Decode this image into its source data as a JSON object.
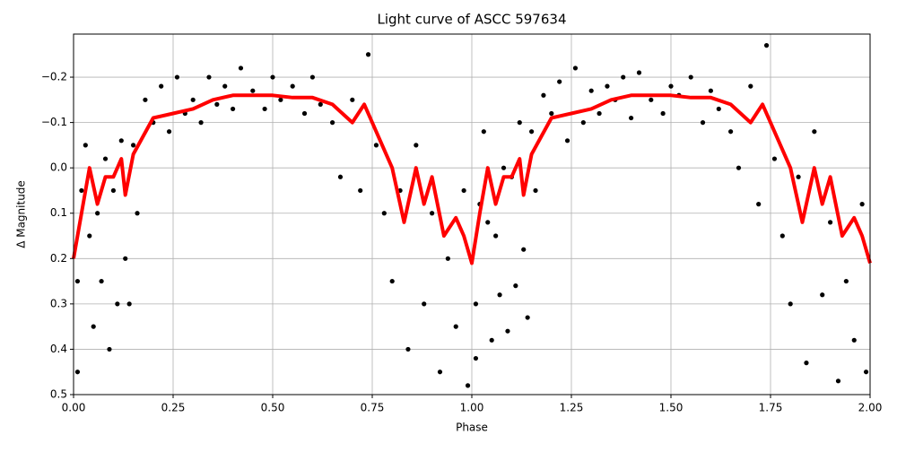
{
  "chart_data": {
    "type": "scatter",
    "title": "Light curve of ASCC 597634",
    "x_label": "Phase",
    "y_label": "Δ Magnitude",
    "xlim": [
      0,
      2
    ],
    "ylim": [
      0.5,
      -0.295
    ],
    "xticks": [
      {
        "value": 0,
        "label": "0.00"
      },
      {
        "value": 0.25,
        "label": "0.25"
      },
      {
        "value": 0.5,
        "label": "0.50"
      },
      {
        "value": 0.75,
        "label": "0.75"
      },
      {
        "value": 1,
        "label": "1.00"
      },
      {
        "value": 1.25,
        "label": "1.25"
      },
      {
        "value": 1.5,
        "label": "1.50"
      },
      {
        "value": 1.75,
        "label": "1.75"
      },
      {
        "value": 2,
        "label": "2.00"
      }
    ],
    "yticks": [
      {
        "value": -0.2,
        "label": "−0.2"
      },
      {
        "value": -0.1,
        "label": "−0.1"
      },
      {
        "value": 0,
        "label": "0.0"
      },
      0.1,
      0.2,
      0.3,
      0.4,
      0.5
    ],
    "grid": true,
    "points": {
      "color": "#000000",
      "x": [
        0.01,
        0.01,
        0.02,
        0.03,
        0.04,
        0.05,
        0.06,
        0.07,
        0.08,
        0.09,
        0.1,
        0.11,
        0.12,
        0.13,
        0.14,
        0.15,
        0.16,
        0.18,
        0.2,
        0.22,
        0.24,
        0.26,
        0.28,
        0.3,
        0.32,
        0.34,
        0.36,
        0.38,
        0.4,
        0.42,
        0.45,
        0.48,
        0.5,
        0.52,
        0.55,
        0.58,
        0.6,
        0.62,
        0.65,
        0.67,
        0.7,
        0.72,
        0.74,
        0.76,
        0.78,
        0.8,
        0.82,
        0.84,
        0.86,
        0.88,
        0.9,
        0.92,
        0.94,
        0.96,
        0.98,
        0.99,
        1.01,
        1.01,
        1.02,
        1.03,
        1.04,
        1.05,
        1.06,
        1.07,
        1.08,
        1.09,
        1.1,
        1.11,
        1.12,
        1.13,
        1.14,
        1.15,
        1.16,
        1.18,
        1.2,
        1.22,
        1.24,
        1.26,
        1.28,
        1.3,
        1.32,
        1.34,
        1.36,
        1.38,
        1.4,
        1.42,
        1.45,
        1.48,
        1.5,
        1.52,
        1.55,
        1.58,
        1.6,
        1.62,
        1.65,
        1.67,
        1.7,
        1.72,
        1.74,
        1.76,
        1.78,
        1.8,
        1.82,
        1.84,
        1.86,
        1.88,
        1.9,
        1.92,
        1.94,
        1.96,
        1.98,
        1.99
      ],
      "y": [
        0.25,
        0.45,
        0.05,
        -0.05,
        0.15,
        0.35,
        0.1,
        0.25,
        -0.02,
        0.4,
        0.05,
        0.3,
        -0.06,
        0.2,
        0.3,
        -0.05,
        0.1,
        -0.15,
        -0.1,
        -0.18,
        -0.08,
        -0.2,
        -0.12,
        -0.15,
        -0.1,
        -0.2,
        -0.14,
        -0.18,
        -0.13,
        -0.22,
        -0.17,
        -0.13,
        -0.2,
        -0.15,
        -0.18,
        -0.12,
        -0.2,
        -0.14,
        -0.1,
        0.02,
        -0.15,
        0.05,
        -0.25,
        -0.05,
        0.1,
        0.25,
        0.05,
        0.4,
        -0.05,
        0.3,
        0.1,
        0.45,
        0.2,
        0.35,
        0.05,
        0.48,
        0.3,
        0.42,
        0.08,
        -0.08,
        0.12,
        0.38,
        0.15,
        0.28,
        0.0,
        0.36,
        0.02,
        0.26,
        -0.1,
        0.18,
        0.33,
        -0.08,
        0.05,
        -0.16,
        -0.12,
        -0.19,
        -0.06,
        -0.22,
        -0.1,
        -0.17,
        -0.12,
        -0.18,
        -0.15,
        -0.2,
        -0.11,
        -0.21,
        -0.15,
        -0.12,
        -0.18,
        -0.16,
        -0.2,
        -0.1,
        -0.17,
        -0.13,
        -0.08,
        0.0,
        -0.18,
        0.08,
        -0.27,
        -0.02,
        0.15,
        0.3,
        0.02,
        0.43,
        -0.08,
        0.28,
        0.12,
        0.47,
        0.25,
        0.38,
        0.08,
        0.45
      ]
    },
    "curve": {
      "color": "#ff0000",
      "x": [
        0,
        0.02,
        0.04,
        0.06,
        0.08,
        0.1,
        0.12,
        0.13,
        0.15,
        0.2,
        0.25,
        0.3,
        0.35,
        0.4,
        0.45,
        0.5,
        0.55,
        0.6,
        0.65,
        0.7,
        0.73,
        0.76,
        0.8,
        0.83,
        0.86,
        0.88,
        0.9,
        0.93,
        0.96,
        0.98,
        1.0,
        1.02,
        1.04,
        1.06,
        1.08,
        1.1,
        1.12,
        1.13,
        1.15,
        1.2,
        1.25,
        1.3,
        1.35,
        1.4,
        1.45,
        1.5,
        1.55,
        1.6,
        1.65,
        1.7,
        1.73,
        1.76,
        1.8,
        1.83,
        1.86,
        1.88,
        1.9,
        1.93,
        1.96,
        1.98,
        2.0
      ],
      "y": [
        0.2,
        0.1,
        0.0,
        0.08,
        0.02,
        0.02,
        -0.02,
        0.06,
        -0.03,
        -0.11,
        -0.12,
        -0.13,
        -0.15,
        -0.16,
        -0.16,
        -0.16,
        -0.155,
        -0.155,
        -0.14,
        -0.1,
        -0.14,
        -0.08,
        0.0,
        0.12,
        0.0,
        0.08,
        0.02,
        0.15,
        0.11,
        0.15,
        0.21,
        0.1,
        0.0,
        0.08,
        0.02,
        0.02,
        -0.02,
        0.06,
        -0.03,
        -0.11,
        -0.12,
        -0.13,
        -0.15,
        -0.16,
        -0.16,
        -0.16,
        -0.155,
        -0.155,
        -0.14,
        -0.1,
        -0.14,
        -0.08,
        0.0,
        0.12,
        0.0,
        0.08,
        0.02,
        0.15,
        0.11,
        0.15,
        0.21
      ]
    }
  }
}
